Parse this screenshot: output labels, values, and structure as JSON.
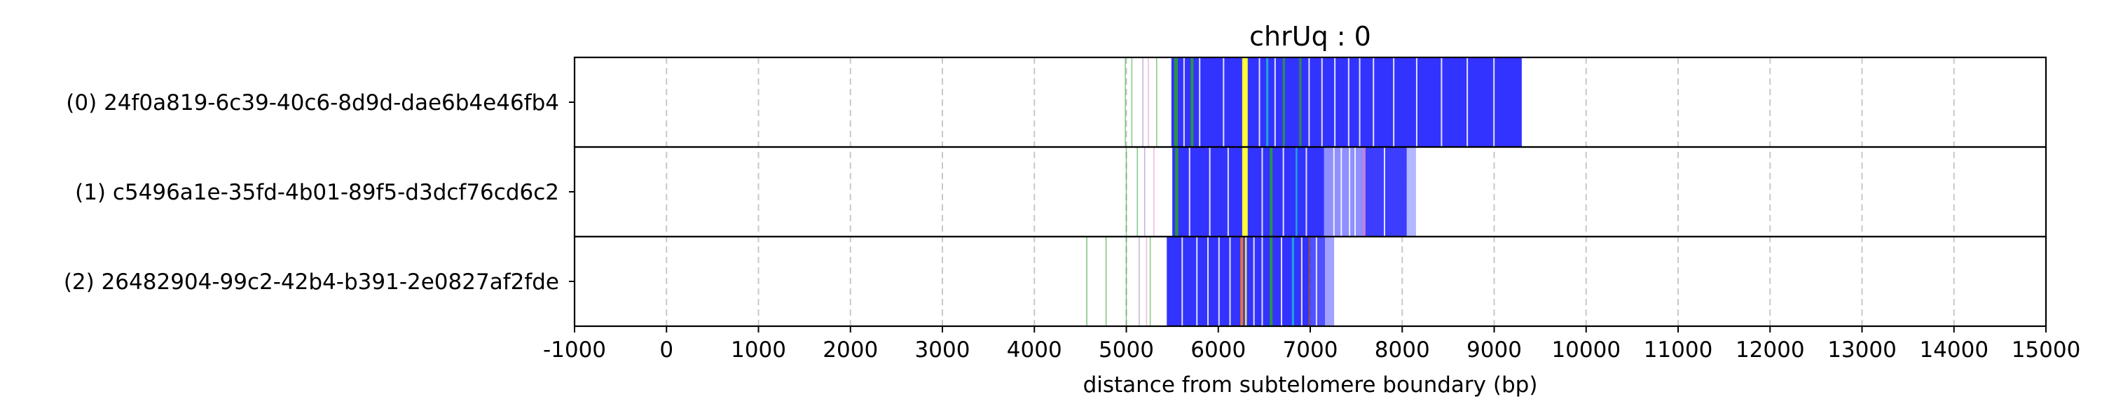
{
  "chart_data": {
    "type": "read-track",
    "title": "chrUq : 0",
    "xlabel": "distance from subtelomere boundary (bp)",
    "xlim": [
      -1000,
      15000
    ],
    "xticks": [
      -1000,
      0,
      1000,
      2000,
      3000,
      4000,
      5000,
      6000,
      7000,
      8000,
      9000,
      10000,
      11000,
      12000,
      13000,
      14000,
      15000
    ],
    "grid": "vertical dashed",
    "tracks": [
      {
        "label": "(0) 24f0a819-6c39-40c6-8d9d-dae6b4e46fb4",
        "marks": [
          {
            "x": 4990,
            "color": "#2ca02c",
            "opacity": 0.55
          },
          {
            "x": 5060,
            "color": "#2ca02c",
            "opacity": 0.55
          },
          {
            "x": 5180,
            "color": "#9467bd",
            "opacity": 0.5
          },
          {
            "x": 5240,
            "color": "#e377c2",
            "opacity": 0.5
          },
          {
            "x": 5330,
            "color": "#2ca02c",
            "opacity": 0.55
          }
        ],
        "blocks": [
          {
            "from": 5490,
            "to": 9300,
            "color": "#3333ff",
            "opacity": 1.0
          },
          {
            "from": 6260,
            "to": 6320,
            "color": "#ffff33",
            "opacity": 1.0
          },
          {
            "from": 5520,
            "to": 5560,
            "color": "#2ca02c",
            "opacity": 0.9
          },
          {
            "from": 5700,
            "to": 5730,
            "color": "#2ca02c",
            "opacity": 0.9
          },
          {
            "from": 6520,
            "to": 6545,
            "color": "#17becf",
            "opacity": 0.8
          },
          {
            "from": 6700,
            "to": 6725,
            "color": "#2ca02c",
            "opacity": 0.8
          },
          {
            "from": 6880,
            "to": 6905,
            "color": "#2ca02c",
            "opacity": 0.8
          }
        ],
        "gaps": [
          5620,
          5790,
          6050,
          6440,
          6610,
          6980,
          7120,
          7260,
          7410,
          7530,
          7680,
          7900,
          8150,
          8420,
          8700,
          8990
        ]
      },
      {
        "label": "(1) c5496a1e-35fd-4b01-89f5-d3dcf76cd6c2",
        "marks": [
          {
            "x": 5000,
            "color": "#2ca02c",
            "opacity": 0.55
          },
          {
            "x": 5120,
            "color": "#2ca02c",
            "opacity": 0.55
          },
          {
            "x": 5200,
            "color": "#9467bd",
            "opacity": 0.5
          },
          {
            "x": 5300,
            "color": "#e377c2",
            "opacity": 0.5
          }
        ],
        "blocks": [
          {
            "from": 5500,
            "to": 7150,
            "color": "#3333ff",
            "opacity": 1.0
          },
          {
            "from": 7150,
            "to": 7600,
            "color": "#3333ff",
            "opacity": 0.55
          },
          {
            "from": 7600,
            "to": 8050,
            "color": "#3333ff",
            "opacity": 0.95
          },
          {
            "from": 8050,
            "to": 8150,
            "color": "#aab0ff",
            "opacity": 0.9
          },
          {
            "from": 6260,
            "to": 6320,
            "color": "#ffff33",
            "opacity": 1.0
          },
          {
            "from": 5530,
            "to": 5565,
            "color": "#2ca02c",
            "opacity": 0.9
          },
          {
            "from": 6560,
            "to": 6590,
            "color": "#2ca02c",
            "opacity": 0.85
          },
          {
            "from": 6840,
            "to": 6860,
            "color": "#17becf",
            "opacity": 0.8
          },
          {
            "from": 7570,
            "to": 7600,
            "color": "#e377c2",
            "opacity": 0.6
          }
        ],
        "gaps": [
          5680,
          5900,
          6100,
          6470,
          6700,
          6950,
          7250,
          7330,
          7420,
          7480,
          7800
        ]
      },
      {
        "label": "(2) 26482904-99c2-42b4-b391-2e0827af2fde",
        "marks": [
          {
            "x": 4570,
            "color": "#2ca02c",
            "opacity": 0.6
          },
          {
            "x": 4780,
            "color": "#2ca02c",
            "opacity": 0.6
          },
          {
            "x": 5000,
            "color": "#2ca02c",
            "opacity": 0.55
          },
          {
            "x": 5140,
            "color": "#9467bd",
            "opacity": 0.5
          },
          {
            "x": 5220,
            "color": "#e377c2",
            "opacity": 0.5
          },
          {
            "x": 5260,
            "color": "#2ca02c",
            "opacity": 0.55
          }
        ],
        "blocks": [
          {
            "from": 5440,
            "to": 7000,
            "color": "#3333ff",
            "opacity": 1.0
          },
          {
            "from": 7000,
            "to": 7160,
            "color": "#3333ff",
            "opacity": 0.85
          },
          {
            "from": 7160,
            "to": 7260,
            "color": "#3333ff",
            "opacity": 0.45
          },
          {
            "from": 6240,
            "to": 6270,
            "color": "#ff7f0e",
            "opacity": 0.9
          },
          {
            "from": 6290,
            "to": 6310,
            "color": "#ffff33",
            "opacity": 0.9
          },
          {
            "from": 6560,
            "to": 6590,
            "color": "#2ca02c",
            "opacity": 0.9
          },
          {
            "from": 6800,
            "to": 6825,
            "color": "#17becf",
            "opacity": 0.8
          },
          {
            "from": 6980,
            "to": 7000,
            "color": "#8c564b",
            "opacity": 0.8
          }
        ],
        "gaps": [
          5600,
          5760,
          5880,
          6000,
          6120,
          6380,
          6470,
          6680,
          6900,
          7060
        ]
      }
    ]
  }
}
